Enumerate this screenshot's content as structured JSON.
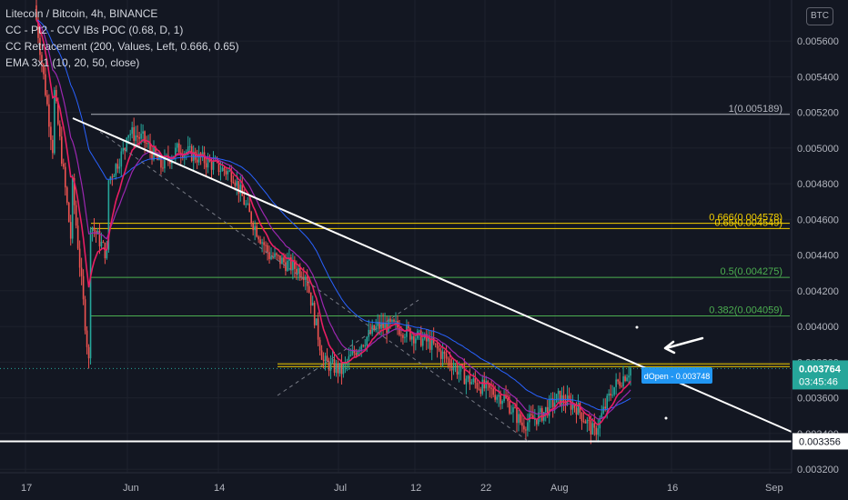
{
  "legend": {
    "symbol_line": "Litecoin / Bitcoin, 4h, BINANCE",
    "ind1": "CC - Pt2 - CCV IBs POC (0.68, D, 1)",
    "ind2": "CC Retracement (200, Values, Left, 0.666, 0.65)",
    "ind3": "EMA 3x1 (10, 20, 50, close)"
  },
  "currency": "BTC",
  "colors": {
    "background": "#131722",
    "grid": "#1e222d",
    "candle_up": "#26a69a",
    "candle_down": "#ef5350",
    "ema_pink": "#e91e63",
    "ema_purple": "#9c27b0",
    "ema_blue": "#2962ff",
    "fib_gray": "#b2b5be",
    "fib_yellow": "#f5d000",
    "fib_green": "#4caf50",
    "trendline": "#ffffff",
    "price_label": "#26a69a",
    "annotation_label": "#2196f3"
  },
  "chart_data": {
    "type": "candlestick",
    "y_range": [
      0.00318,
      0.00583
    ],
    "x_ticks": [
      "17",
      "Jun",
      "14",
      "Jul",
      "12",
      "22",
      "Aug",
      "16",
      "Sep"
    ],
    "y_ticks": [
      "0.005600",
      "0.005400",
      "0.005200",
      "0.005000",
      "0.004800",
      "0.004600",
      "0.004400",
      "0.004200",
      "0.004000",
      "0.003800",
      "0.003600",
      "0.003400",
      "0.003200"
    ],
    "y_ticks_values": [
      0.0056,
      0.0054,
      0.0052,
      0.005,
      0.0048,
      0.0046,
      0.0044,
      0.0042,
      0.004,
      0.0038,
      0.0036,
      0.0034,
      0.0032
    ],
    "fib_levels": [
      {
        "label": "1(0.005189)",
        "value": 0.005189,
        "color": "#b2b5be"
      },
      {
        "label": "0.666(0.004578)",
        "value": 0.004578,
        "color": "#f5d000"
      },
      {
        "label": "0.65(0.004549)",
        "value": 0.004549,
        "color": "#f5d000"
      },
      {
        "label": "0.5(0.004275)",
        "value": 0.004275,
        "color": "#4caf50"
      },
      {
        "label": "0.382(0.004059)",
        "value": 0.004059,
        "color": "#4caf50"
      }
    ],
    "poc_level": 0.00379,
    "support_level": 0.003356,
    "support_label": "0.003356",
    "last_price": "0.003764",
    "countdown": "03:45:46",
    "annotation": "dOpen - 0.003748",
    "price_path": [
      [
        0.0058,
        0.005
      ],
      [
        0.0054,
        0.0045
      ],
      [
        0.0049,
        0.0038
      ],
      [
        0.0046,
        0.0044
      ],
      [
        0.0048,
        0.005
      ],
      [
        0.0051,
        0.00505
      ],
      [
        0.00505,
        0.0049
      ],
      [
        0.0049,
        0.005
      ],
      [
        0.005,
        0.00495
      ],
      [
        0.00495,
        0.0049
      ],
      [
        0.0049,
        0.00485
      ],
      [
        0.00485,
        0.0046
      ],
      [
        0.0046,
        0.0044
      ],
      [
        0.0044,
        0.00435
      ],
      [
        0.00435,
        0.0043
      ],
      [
        0.0043,
        0.0038
      ],
      [
        0.0038,
        0.00375
      ],
      [
        0.00375,
        0.0039
      ],
      [
        0.0039,
        0.004
      ],
      [
        0.004,
        0.004
      ],
      [
        0.004,
        0.00395
      ],
      [
        0.00395,
        0.0039
      ],
      [
        0.0039,
        0.0038
      ],
      [
        0.0038,
        0.0037
      ],
      [
        0.0037,
        0.00365
      ],
      [
        0.00365,
        0.0036
      ],
      [
        0.0036,
        0.00345
      ],
      [
        0.00345,
        0.0035
      ],
      [
        0.0035,
        0.0036
      ],
      [
        0.0036,
        0.00355
      ],
      [
        0.00355,
        0.0034
      ],
      [
        0.0034,
        0.00365
      ],
      [
        0.00365,
        0.003764
      ]
    ]
  }
}
